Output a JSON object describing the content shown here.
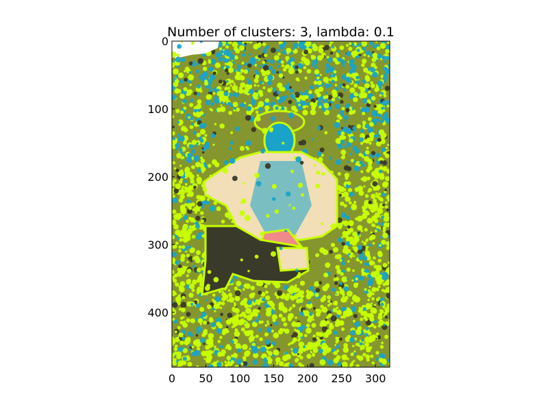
{
  "chart_data": {
    "type": "image",
    "title": "Number of clusters: 3, lambda: 0.1",
    "xlim": [
      0,
      321
    ],
    "ylim": [
      481,
      0
    ],
    "x_ticks": [
      0,
      50,
      100,
      150,
      200,
      250,
      300
    ],
    "y_ticks": [
      0,
      100,
      200,
      300,
      400
    ],
    "clusters": 3,
    "lambda": 0.1,
    "colors": {
      "foliage": "#7a8a2a",
      "edge_green": "#c8ff00",
      "edge_cyan": "#1aa3c8",
      "uniform": "#f2dfb8",
      "skin": "#f08a8a",
      "dark": "#3a3a2a",
      "sky": "#ffffff"
    }
  }
}
